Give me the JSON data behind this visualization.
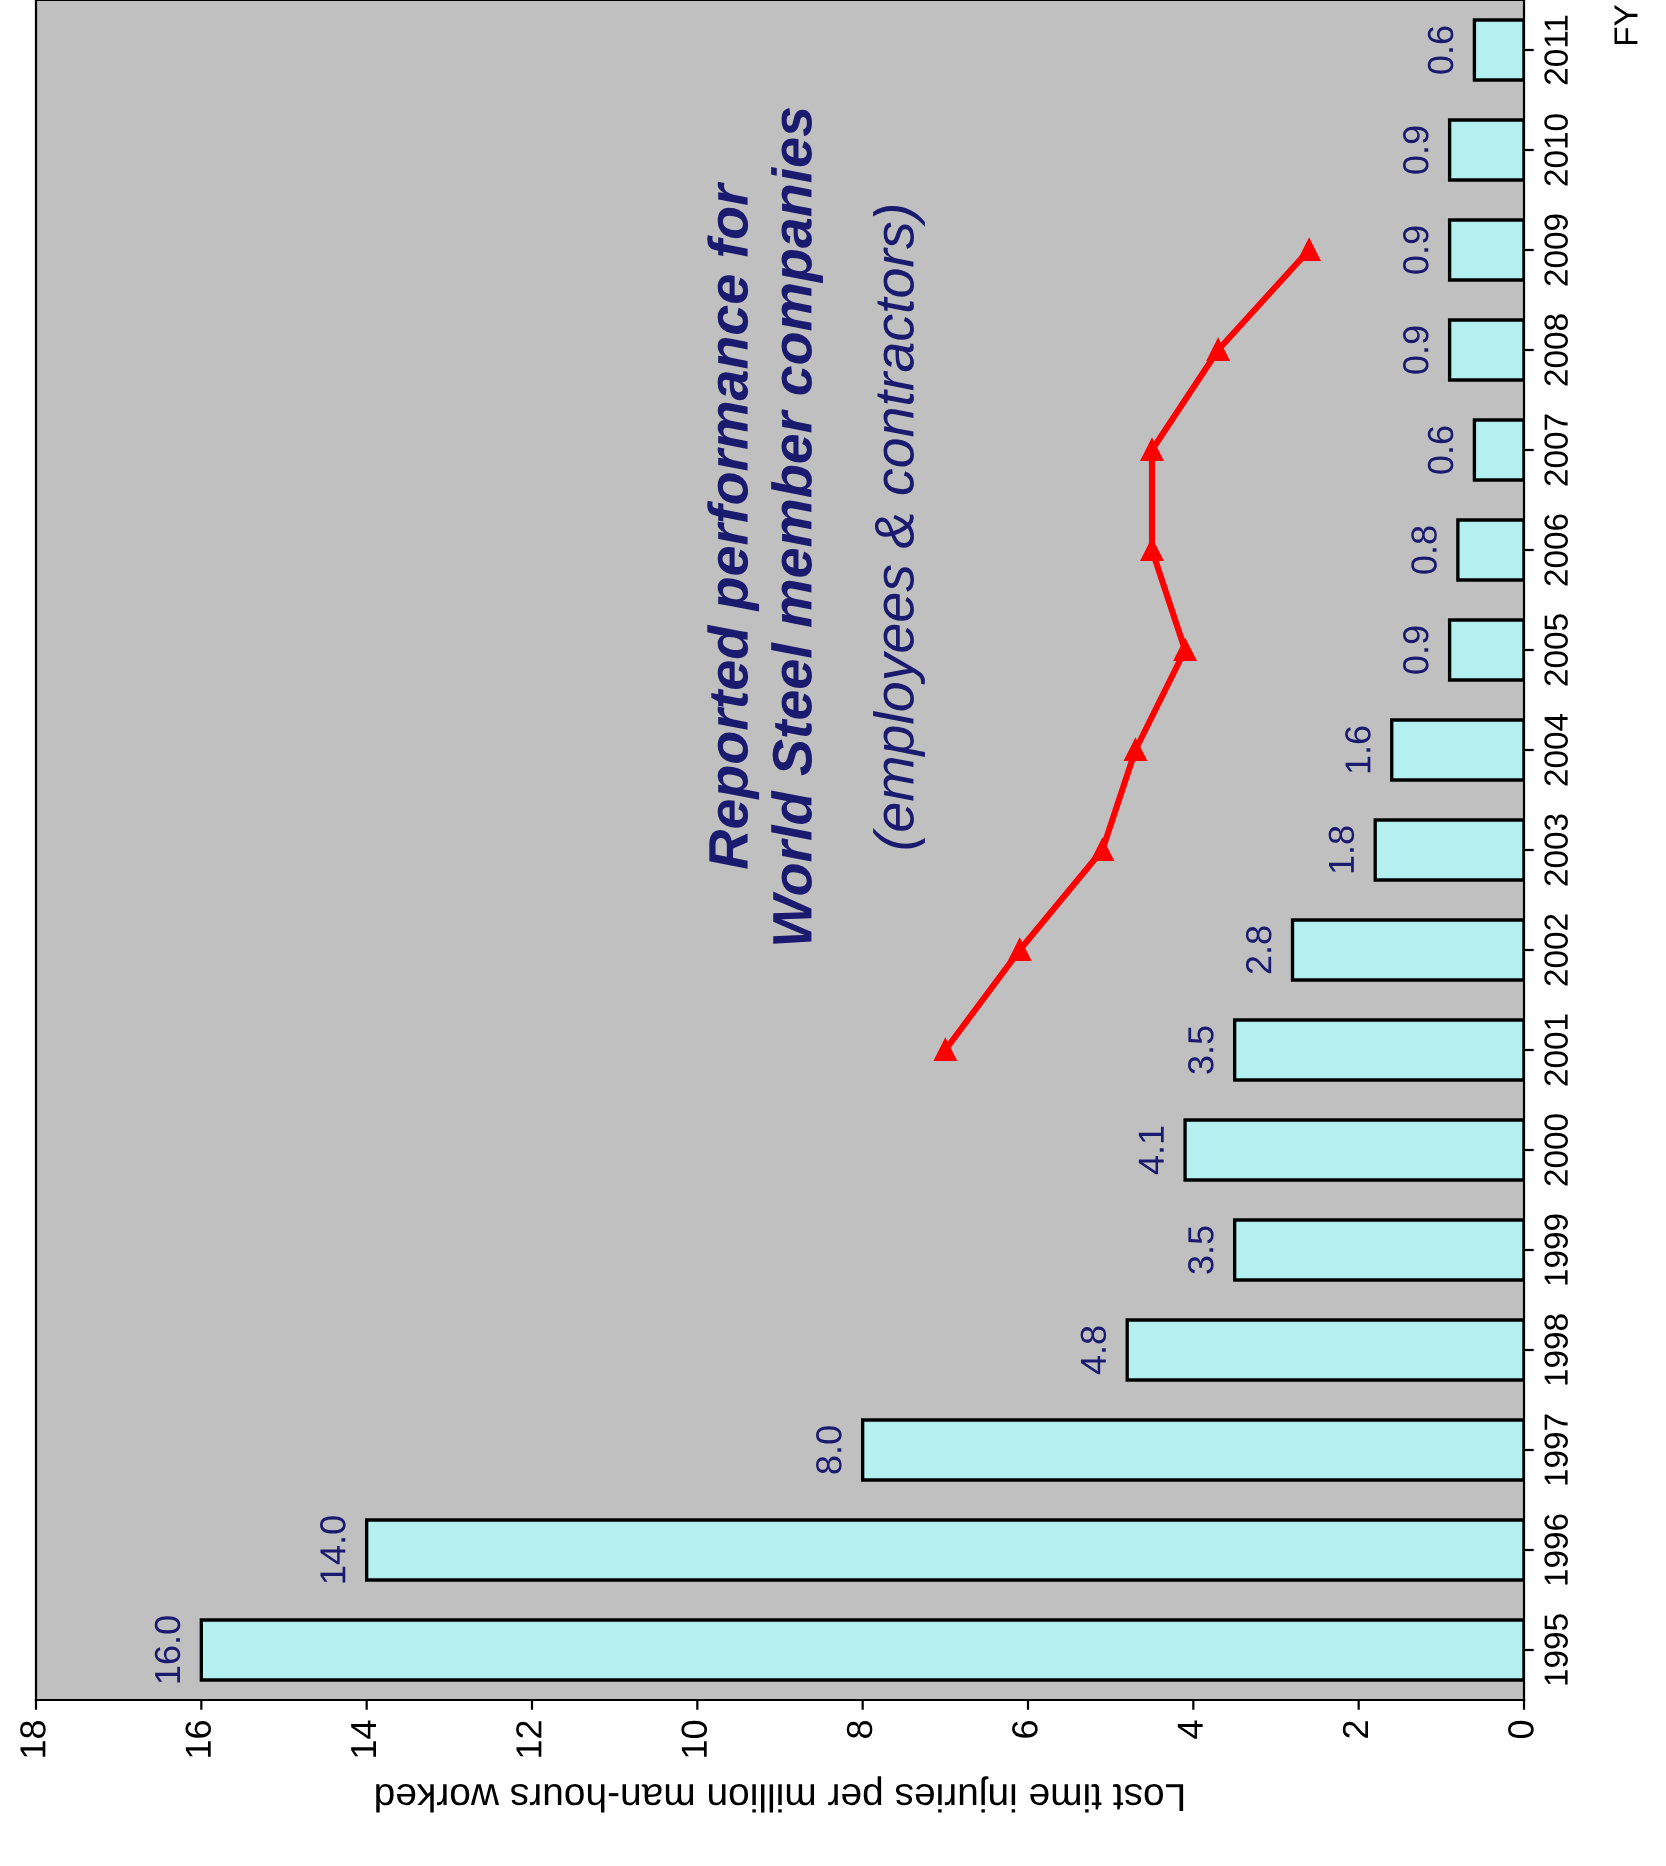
{
  "chart_data": {
    "type": "bar",
    "orientation": "horizontal",
    "xlabel": "Lost time injuries per million man-hours worked",
    "ylabel": "FY",
    "categories": [
      "2011",
      "2010",
      "2009",
      "2008",
      "2007",
      "2006",
      "2005",
      "2004",
      "2003",
      "2002",
      "2001",
      "2000",
      "1999",
      "1998",
      "1997",
      "1996",
      "1995"
    ],
    "xlim": [
      18,
      0
    ],
    "xticks": [
      0,
      2,
      4,
      6,
      8,
      10,
      12,
      14,
      16,
      18
    ],
    "grid": false,
    "legend": false,
    "series": [
      {
        "color": "#b4f0f0",
        "values": [
          0.6,
          0.9,
          0.9,
          0.9,
          0.6,
          0.8,
          0.9,
          1.6,
          1.8,
          2.8,
          3.5,
          4.1,
          3.5,
          4.8,
          8.0,
          14.0,
          16.0
        ],
        "value_labels": [
          "0.6",
          "0.9",
          "0.9",
          "0.9",
          "0.6",
          "0.8",
          "0.9",
          "1.6",
          "1.8",
          "2.8",
          "3.5",
          "4.1",
          "3.5",
          "4.8",
          "8.0",
          "14.0",
          "16.0"
        ]
      },
      {
        "type": "line",
        "name": "Reported performance for\nWorld Steel member companies",
        "color": "#ff0000",
        "marker": "triangle",
        "line_style": "solid",
        "values": [
          null,
          null,
          2.6,
          3.7,
          4.5,
          4.5,
          4.1,
          4.7,
          5.1,
          6.1,
          7.0,
          null,
          null,
          null,
          null,
          null,
          null
        ]
      }
    ],
    "annotations": [
      "(employees & contractors)"
    ]
  }
}
